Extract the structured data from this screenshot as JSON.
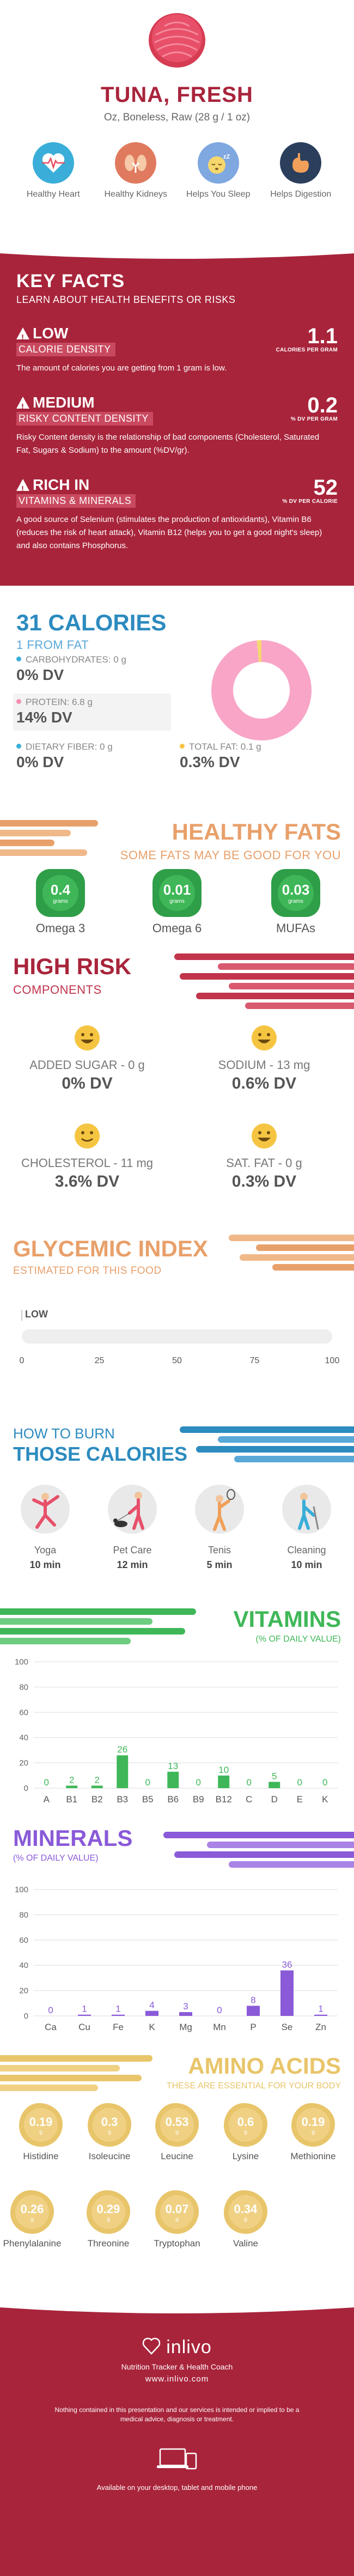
{
  "header": {
    "title": "TUNA, FRESH",
    "subtitle": "Oz, Boneless, Raw (28 g / 1 oz)",
    "benefits": [
      {
        "label": "Healthy Heart",
        "icon": "heart-rate-icon",
        "color": "#3aaed8"
      },
      {
        "label": "Healthy Kidneys",
        "icon": "kidneys-icon",
        "color": "#e07a5f"
      },
      {
        "label": "Helps You Sleep",
        "icon": "sleeping-face-icon",
        "color": "#7fa7e0"
      },
      {
        "label": "Helps Digestion",
        "icon": "stomach-icon",
        "color": "#2b3e5c"
      }
    ]
  },
  "key_facts": {
    "title": "KEY FACTS",
    "subtitle": "LEARN ABOUT HEALTH BENEFITS OR RISKS",
    "facts": [
      {
        "level": "LOW",
        "metric": "CALORIE DENSITY",
        "value": "1.1",
        "unit": "CALORIES PER GRAM",
        "description": "The amount of calories you are getting from 1 gram is low.",
        "icon": "warning-icon"
      },
      {
        "level": "MEDIUM",
        "metric": "RISKY CONTENT DENSITY",
        "value": "0.2",
        "unit": "% DV PER GRAM",
        "description": "Risky Content density is the relationship of bad components (Cholesterol, Saturated Fat, Sugars & Sodium) to the amount (%DV/gr).",
        "icon": "warning-icon"
      },
      {
        "level": "RICH IN",
        "metric": "VITAMINS & MINERALS",
        "value": "52",
        "unit": "% DV PER CALORIE",
        "description": "A good source of Selenium (stimulates the production of antioxidants), Vitamin B6 (reduces the risk of heart attack), Vitamin B12 (helps you to get a good night's sleep) and also contains Phosphorus.",
        "icon": "warning-icon"
      }
    ]
  },
  "calories": {
    "title": "31 CALORIES",
    "subtitle": "1 FROM FAT",
    "macros": [
      {
        "label": "CARBOHYDRATES: 0 g",
        "dv": "0% DV",
        "color": "#3aaed8"
      },
      {
        "label": "PROTEIN: 6.8 g",
        "dv": "14% DV",
        "color": "#f48fb1"
      },
      {
        "label": "DIETARY FIBER: 0 g",
        "dv": "0% DV",
        "color": "#3aaed8"
      },
      {
        "label": "TOTAL FAT: 0.1 g",
        "dv": "0.3% DV",
        "color": "#f5c542"
      }
    ],
    "donut": {
      "protein_share": 0.985,
      "fat_share": 0.015,
      "protein_color": "#f8a5c8",
      "fat_color": "#f5d76e"
    }
  },
  "healthy_fats": {
    "title": "HEALTHY FATS",
    "subtitle": "SOME FATS MAY BE GOOD FOR YOU",
    "items": [
      {
        "value": "0.4",
        "unit": "grams",
        "label": "Omega 3"
      },
      {
        "value": "0.01",
        "unit": "grams",
        "label": "Omega 6"
      },
      {
        "value": "0.03",
        "unit": "grams",
        "label": "MUFAs"
      }
    ]
  },
  "high_risk": {
    "title": "HIGH RISK",
    "subtitle": "COMPONENTS",
    "items": [
      {
        "label": "ADDED SUGAR - 0 g",
        "dv": "0% DV",
        "icon": "happy-face-icon"
      },
      {
        "label": "SODIUM - 13 mg",
        "dv": "0.6% DV",
        "icon": "happy-face-icon"
      },
      {
        "label": "CHOLESTEROL - 11 mg",
        "dv": "3.6% DV",
        "icon": "smiling-face-icon"
      },
      {
        "label": "SAT. FAT - 0 g",
        "dv": "0.3% DV",
        "icon": "happy-face-icon"
      }
    ]
  },
  "glycemic": {
    "title": "GLYCEMIC INDEX",
    "subtitle": "ESTIMATED FOR THIS FOOD",
    "value": 0,
    "level": "LOW",
    "ticks": [
      "0",
      "25",
      "50",
      "75",
      "100"
    ]
  },
  "burn": {
    "title_small": "HOW TO BURN",
    "title_big": "THOSE CALORIES",
    "activities": [
      {
        "name": "Yoga",
        "time": "10 min",
        "icon": "yoga-icon"
      },
      {
        "name": "Pet Care",
        "time": "12 min",
        "icon": "dog-walking-icon"
      },
      {
        "name": "Tenis",
        "time": "5 min",
        "icon": "tennis-icon"
      },
      {
        "name": "Cleaning",
        "time": "10 min",
        "icon": "cleaning-icon"
      }
    ]
  },
  "vitamins": {
    "title": "VITAMINS",
    "subtitle": "(% OF DAILY VALUE)",
    "chart_data": {
      "type": "bar",
      "categories": [
        "A",
        "B1",
        "B2",
        "B3",
        "B5",
        "B6",
        "B9",
        "B12",
        "C",
        "D",
        "E",
        "K"
      ],
      "values": [
        0,
        2,
        2,
        26,
        0,
        13,
        0,
        10,
        0,
        5,
        0,
        0
      ],
      "ylim": [
        0,
        100
      ],
      "yticks": [
        "0",
        "20",
        "40",
        "60",
        "80",
        "100"
      ],
      "color": "#3fb758",
      "grid": true
    }
  },
  "minerals": {
    "title": "MINERALS",
    "subtitle": "(% OF DAILY VALUE)",
    "chart_data": {
      "type": "bar",
      "categories": [
        "Ca",
        "Cu",
        "Fe",
        "K",
        "Mg",
        "Mn",
        "P",
        "Se",
        "Zn"
      ],
      "values": [
        0,
        1,
        1,
        4,
        3,
        0,
        8,
        36,
        1
      ],
      "ylim": [
        0,
        100
      ],
      "yticks": [
        "0",
        "20",
        "40",
        "60",
        "80",
        "100"
      ],
      "color": "#8a5ad8",
      "grid": true
    }
  },
  "amino": {
    "title": "AMINO ACIDS",
    "subtitle": "THESE ARE ESSENTIAL FOR YOUR BODY",
    "items": [
      {
        "value": "0.19",
        "unit": "g",
        "label": "Histidine"
      },
      {
        "value": "0.3",
        "unit": "g",
        "label": "Isoleucine"
      },
      {
        "value": "0.53",
        "unit": "g",
        "label": "Leucine"
      },
      {
        "value": "0.6",
        "unit": "g",
        "label": "Lysine"
      },
      {
        "value": "0.19",
        "unit": "g",
        "label": "Methionine"
      },
      {
        "value": "0.26",
        "unit": "g",
        "label": "Phenylalanine"
      },
      {
        "value": "0.29",
        "unit": "g",
        "label": "Threonine"
      },
      {
        "value": "0.07",
        "unit": "g",
        "label": "Tryptophan"
      },
      {
        "value": "0.34",
        "unit": "g",
        "label": "Valine"
      }
    ]
  },
  "footer": {
    "brand": "inlivo",
    "tagline": "Nutrition Tracker & Health Coach",
    "url": "www.inlivo.com",
    "disclaimer": "Nothing contained in this presentation and our services is intended or implied to be a medical advice, diagnosis or treatment.",
    "available": "Available on your desktop, tablet and mobile phone"
  },
  "colors": {
    "brand": "#a8243b",
    "blue": "#2c8bbf",
    "orange": "#e8a06a",
    "green": "#3fb758",
    "purple": "#8a5ad8",
    "gold": "#e8c56a"
  }
}
